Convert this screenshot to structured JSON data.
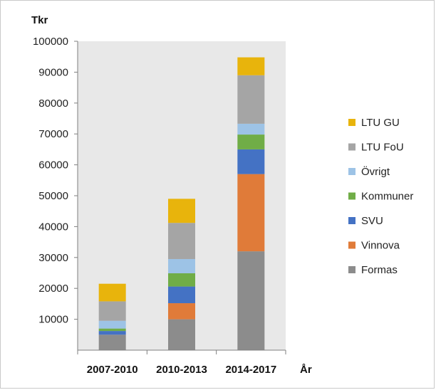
{
  "chart_data": {
    "type": "bar",
    "stacked": true,
    "ylabel": "Tkr",
    "xlabel": "År",
    "ylim": [
      0,
      100000
    ],
    "yticks": [
      10000,
      20000,
      30000,
      40000,
      50000,
      60000,
      70000,
      80000,
      90000,
      100000
    ],
    "categories": [
      "2007-2010",
      "2010-2013",
      "2014-2017"
    ],
    "grid": false,
    "legend_position": "right",
    "legend_order": [
      "LTU GU",
      "LTU FoU",
      "Övrigt",
      "Kommuner",
      "SVU",
      "Vinnova",
      "Formas"
    ],
    "series": [
      {
        "name": "Formas",
        "color": "#8c8c8c",
        "values": [
          5000,
          10000,
          32000
        ]
      },
      {
        "name": "Vinnova",
        "color": "#e07b39",
        "values": [
          0,
          5200,
          25000
        ]
      },
      {
        "name": "SVU",
        "color": "#4472c4",
        "values": [
          1200,
          5400,
          8000
        ]
      },
      {
        "name": "Kommuner",
        "color": "#70ad47",
        "values": [
          800,
          4300,
          4800
        ]
      },
      {
        "name": "Övrigt",
        "color": "#9dc3e6",
        "values": [
          2500,
          4600,
          3500
        ]
      },
      {
        "name": "LTU FoU",
        "color": "#a5a5a5",
        "values": [
          6300,
          11700,
          15700
        ]
      },
      {
        "name": "LTU GU",
        "color": "#e8b40c",
        "values": [
          5700,
          7800,
          5800
        ]
      }
    ]
  }
}
